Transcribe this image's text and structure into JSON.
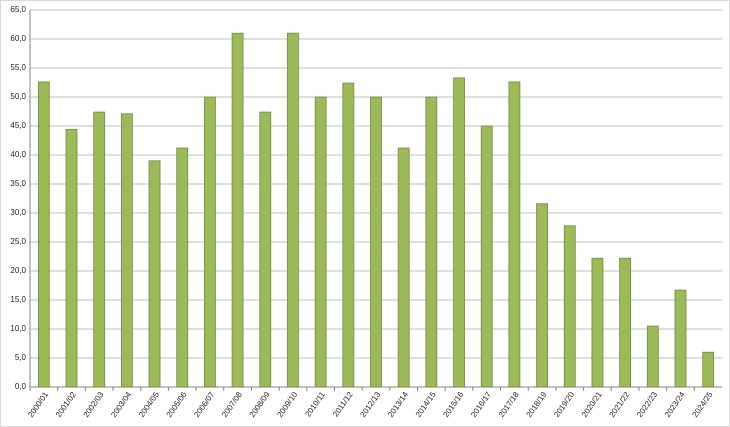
{
  "chart_data": {
    "type": "bar",
    "categories": [
      "2000/01",
      "2001/02",
      "2002/03",
      "2003/04",
      "2004/05",
      "2005/06",
      "2006/07",
      "2007/08",
      "2008/09",
      "2009/10",
      "2010/11",
      "2011/12",
      "2012/13",
      "2013/14",
      "2014/15",
      "2015/16",
      "2016/17",
      "2017/18",
      "2018/19",
      "2019/20",
      "2020/21",
      "2021/22",
      "2022/23",
      "2023/24",
      "2024/25"
    ],
    "values": [
      52.6,
      44.4,
      47.4,
      47.1,
      39.0,
      41.2,
      50.0,
      61.0,
      47.4,
      61.0,
      50.0,
      52.4,
      50.0,
      41.2,
      50.0,
      53.3,
      45.0,
      52.6,
      31.6,
      27.8,
      22.2,
      22.2,
      10.5,
      16.7,
      6.0
    ],
    "color": "#9bbb59",
    "ylim": [
      0,
      65
    ],
    "yticks": [
      {
        "value": 0,
        "label": "0,0"
      },
      {
        "value": 5,
        "label": "5,0"
      },
      {
        "value": 10,
        "label": "10,0"
      },
      {
        "value": 15,
        "label": "15,0"
      },
      {
        "value": 20,
        "label": "20,0"
      },
      {
        "value": 25,
        "label": "25,0"
      },
      {
        "value": 30,
        "label": "30,0"
      },
      {
        "value": 35,
        "label": "35,0"
      },
      {
        "value": 40,
        "label": "40,0"
      },
      {
        "value": 45,
        "label": "45,0"
      },
      {
        "value": 50,
        "label": "50,0"
      },
      {
        "value": 55,
        "label": "55,0"
      },
      {
        "value": 60,
        "label": "60,0"
      },
      {
        "value": 65,
        "label": "65,0"
      }
    ],
    "grid": true
  }
}
